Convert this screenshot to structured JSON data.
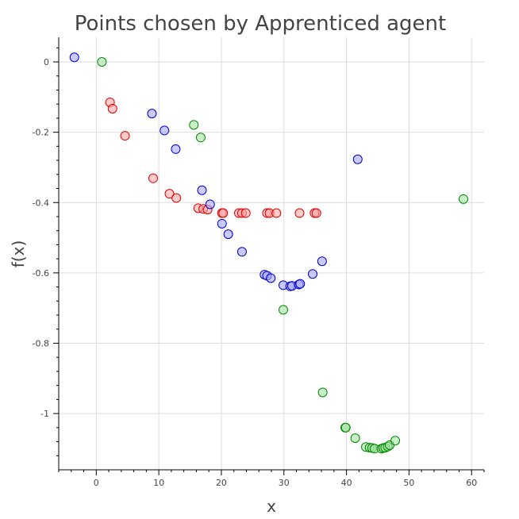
{
  "chart_data": {
    "type": "scatter",
    "title": "Points chosen by Apprenticed agent",
    "xlabel": "x",
    "ylabel": "f(x)",
    "xlim": [
      -6,
      62
    ],
    "ylim": [
      -1.16,
      0.07
    ],
    "grid": true,
    "legend": "none",
    "x_ticks": [
      0,
      10,
      20,
      30,
      40,
      50,
      60
    ],
    "x_tick_labels": [
      "0",
      "10",
      "20",
      "30",
      "40",
      "50",
      "60"
    ],
    "y_ticks": [
      0,
      -0.2,
      -0.4,
      -0.6,
      -0.8,
      -1
    ],
    "y_tick_labels": [
      "0",
      "-0.2",
      "-0.4",
      "-0.6",
      "-0.8",
      "-1"
    ],
    "series": [
      {
        "color_fill": "#ff9e9e",
        "color_stroke": "#dd0000",
        "points": [
          [
            2.2,
            -0.115
          ],
          [
            2.6,
            -0.133
          ],
          [
            4.6,
            -0.21
          ],
          [
            9.1,
            -0.331
          ],
          [
            11.7,
            -0.375
          ],
          [
            12.8,
            -0.387
          ],
          [
            16.3,
            -0.416
          ],
          [
            17.1,
            -0.418
          ],
          [
            17.8,
            -0.42
          ],
          [
            20.1,
            -0.43
          ],
          [
            20.3,
            -0.43
          ],
          [
            22.8,
            -0.43
          ],
          [
            23.3,
            -0.43
          ],
          [
            23.9,
            -0.43
          ],
          [
            27.3,
            -0.43
          ],
          [
            27.7,
            -0.43
          ],
          [
            28.8,
            -0.43
          ],
          [
            32.5,
            -0.43
          ],
          [
            34.9,
            -0.43
          ],
          [
            35.2,
            -0.43
          ]
        ]
      },
      {
        "color_fill": "#9e9eff",
        "color_stroke": "#0000cc",
        "points": [
          [
            -3.5,
            0.013
          ],
          [
            8.9,
            -0.147
          ],
          [
            10.9,
            -0.195
          ],
          [
            12.7,
            -0.248
          ],
          [
            16.9,
            -0.365
          ],
          [
            18.2,
            -0.405
          ],
          [
            20.1,
            -0.46
          ],
          [
            21.1,
            -0.49
          ],
          [
            23.3,
            -0.54
          ],
          [
            26.9,
            -0.605
          ],
          [
            27.3,
            -0.608
          ],
          [
            27.9,
            -0.615
          ],
          [
            29.9,
            -0.635
          ],
          [
            31.0,
            -0.638
          ],
          [
            31.3,
            -0.637
          ],
          [
            32.4,
            -0.633
          ],
          [
            32.6,
            -0.631
          ],
          [
            34.6,
            -0.603
          ],
          [
            36.1,
            -0.567
          ],
          [
            41.8,
            -0.277
          ]
        ]
      },
      {
        "color_fill": "#9ee09e",
        "color_stroke": "#008800",
        "points": [
          [
            0.9,
            0.0
          ],
          [
            15.6,
            -0.179
          ],
          [
            16.7,
            -0.215
          ],
          [
            29.9,
            -0.705
          ],
          [
            36.2,
            -0.94
          ],
          [
            39.8,
            -1.04
          ],
          [
            39.9,
            -1.04
          ],
          [
            41.4,
            -1.07
          ],
          [
            43.1,
            -1.095
          ],
          [
            43.7,
            -1.097
          ],
          [
            44.1,
            -1.098
          ],
          [
            44.5,
            -1.1
          ],
          [
            45.6,
            -1.1
          ],
          [
            45.9,
            -1.098
          ],
          [
            46.2,
            -1.097
          ],
          [
            46.6,
            -1.094
          ],
          [
            46.9,
            -1.09
          ],
          [
            47.8,
            -1.077
          ],
          [
            58.7,
            -0.39
          ]
        ]
      }
    ]
  }
}
